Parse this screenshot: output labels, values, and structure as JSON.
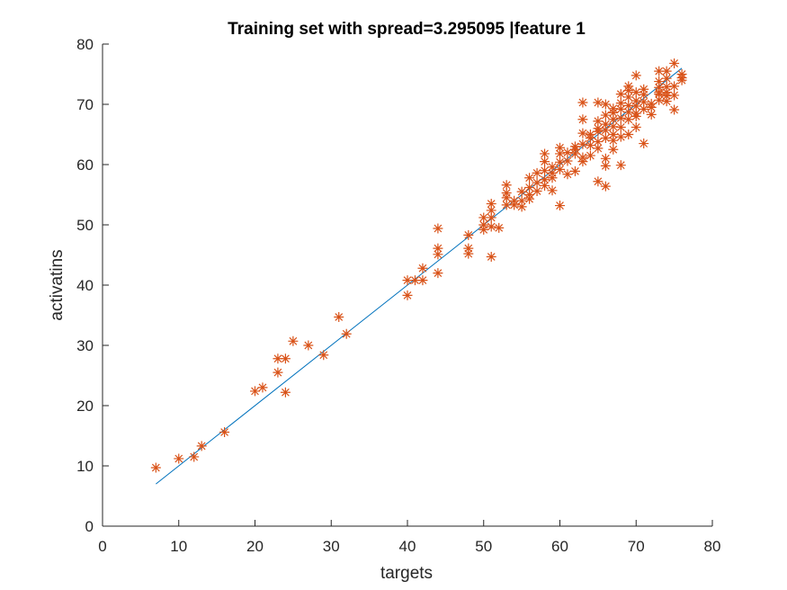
{
  "chart_data": {
    "type": "scatter",
    "title": "Training set with spread=3.295095 |feature 1",
    "xlabel": "targets",
    "ylabel": "activatins",
    "xlim": [
      0,
      80
    ],
    "ylim": [
      0,
      80
    ],
    "xticks": [
      0,
      10,
      20,
      30,
      40,
      50,
      60,
      70,
      80
    ],
    "yticks": [
      0,
      10,
      20,
      30,
      40,
      50,
      60,
      70,
      80
    ],
    "grid": false,
    "marker_color": "#D95319",
    "line_color": "#0072BD",
    "fit_line": {
      "x": [
        7,
        76
      ],
      "y": [
        7,
        76
      ]
    },
    "series": [
      {
        "marker": "*",
        "points": [
          [
            7,
            9.7
          ],
          [
            10,
            11.2
          ],
          [
            12,
            11.5
          ],
          [
            13,
            13.3
          ],
          [
            16,
            15.6
          ],
          [
            20,
            22.4
          ],
          [
            21,
            23
          ],
          [
            23,
            25.5
          ],
          [
            23,
            27.8
          ],
          [
            24,
            27.8
          ],
          [
            24,
            22.2
          ],
          [
            25,
            30.7
          ],
          [
            27,
            30
          ],
          [
            29,
            28.4
          ],
          [
            31,
            34.7
          ],
          [
            32,
            31.9
          ],
          [
            40,
            40.8
          ],
          [
            40,
            38.3
          ],
          [
            41,
            40.8
          ],
          [
            42,
            40.8
          ],
          [
            42,
            42.8
          ],
          [
            44,
            49.4
          ],
          [
            44,
            46.1
          ],
          [
            44,
            45.1
          ],
          [
            44,
            42
          ],
          [
            48,
            48.3
          ],
          [
            48,
            46.1
          ],
          [
            48,
            45.2
          ],
          [
            51,
            44.7
          ],
          [
            50,
            51.2
          ],
          [
            50,
            50
          ],
          [
            50,
            49.2
          ],
          [
            51,
            51.2
          ],
          [
            51,
            52.4
          ],
          [
            51,
            53.5
          ],
          [
            51,
            49.7
          ],
          [
            52,
            49.5
          ],
          [
            53,
            53.3
          ],
          [
            53,
            55.3
          ],
          [
            53,
            56.6
          ],
          [
            53,
            54.5
          ],
          [
            54,
            53.3
          ],
          [
            54,
            54
          ],
          [
            55,
            55.5
          ],
          [
            55,
            54
          ],
          [
            55,
            53
          ],
          [
            56,
            56.2
          ],
          [
            56,
            55
          ],
          [
            56,
            57.8
          ],
          [
            56,
            54.3
          ],
          [
            57,
            57
          ],
          [
            57,
            55.6
          ],
          [
            57,
            58.6
          ],
          [
            58,
            59
          ],
          [
            58,
            60.5
          ],
          [
            58,
            61.8
          ],
          [
            58,
            57.5
          ],
          [
            58,
            56.5
          ],
          [
            59,
            57.8
          ],
          [
            59,
            59.6
          ],
          [
            59,
            58.6
          ],
          [
            59,
            55.7
          ],
          [
            60,
            60.4
          ],
          [
            60,
            61.8
          ],
          [
            60,
            62.8
          ],
          [
            60,
            59.2
          ],
          [
            60,
            53.2
          ],
          [
            61,
            60.6
          ],
          [
            61,
            62
          ],
          [
            61,
            58.4
          ],
          [
            62,
            61.8
          ],
          [
            62,
            62.5
          ],
          [
            62,
            63
          ],
          [
            62,
            58.9
          ],
          [
            63,
            60.5
          ],
          [
            63,
            61.2
          ],
          [
            63,
            63.4
          ],
          [
            63,
            65.2
          ],
          [
            63,
            67.5
          ],
          [
            63,
            70.3
          ],
          [
            64,
            63.2
          ],
          [
            64,
            64.4
          ],
          [
            64,
            61.5
          ],
          [
            64,
            65
          ],
          [
            65,
            63.8
          ],
          [
            65,
            65.5
          ],
          [
            65,
            67.2
          ],
          [
            65,
            70.3
          ],
          [
            65,
            66
          ],
          [
            65,
            57.2
          ],
          [
            65,
            62.7
          ],
          [
            66,
            64.4
          ],
          [
            66,
            65.7
          ],
          [
            66,
            66.7
          ],
          [
            66,
            68.2
          ],
          [
            66,
            70
          ],
          [
            66,
            61
          ],
          [
            66,
            56.4
          ],
          [
            66,
            59.8
          ],
          [
            67,
            65
          ],
          [
            67,
            66.3
          ],
          [
            67,
            67.5
          ],
          [
            67,
            68.6
          ],
          [
            67,
            64
          ],
          [
            67,
            62.5
          ],
          [
            67,
            69.3
          ],
          [
            68,
            66.2
          ],
          [
            68,
            67.7
          ],
          [
            68,
            69.2
          ],
          [
            68,
            71.7
          ],
          [
            68,
            64.6
          ],
          [
            68,
            59.9
          ],
          [
            68,
            70.2
          ],
          [
            69,
            67.5
          ],
          [
            69,
            68.7
          ],
          [
            69,
            69.8
          ],
          [
            69,
            71.2
          ],
          [
            69,
            73
          ],
          [
            69,
            65
          ],
          [
            69,
            72.3
          ],
          [
            70,
            68.5
          ],
          [
            70,
            69.7
          ],
          [
            70,
            70.6
          ],
          [
            70,
            72
          ],
          [
            70,
            74.8
          ],
          [
            70,
            66.2
          ],
          [
            70,
            68
          ],
          [
            71,
            69.2
          ],
          [
            71,
            70.4
          ],
          [
            71,
            72.5
          ],
          [
            71,
            63.5
          ],
          [
            71,
            71.6
          ],
          [
            72,
            69.5
          ],
          [
            72,
            70.1
          ],
          [
            72,
            68.3
          ],
          [
            73,
            70.7
          ],
          [
            73,
            71.7
          ],
          [
            73,
            72.8
          ],
          [
            73,
            73.8
          ],
          [
            73,
            75.5
          ],
          [
            73,
            72
          ],
          [
            74,
            71.4
          ],
          [
            74,
            72.9
          ],
          [
            74,
            74.3
          ],
          [
            74,
            70.5
          ],
          [
            74,
            75.5
          ],
          [
            74,
            72
          ],
          [
            75,
            73
          ],
          [
            75,
            76.8
          ],
          [
            75,
            69.1
          ],
          [
            75,
            71.5
          ],
          [
            76,
            74.4
          ],
          [
            76,
            75
          ],
          [
            76,
            74
          ]
        ]
      }
    ]
  }
}
